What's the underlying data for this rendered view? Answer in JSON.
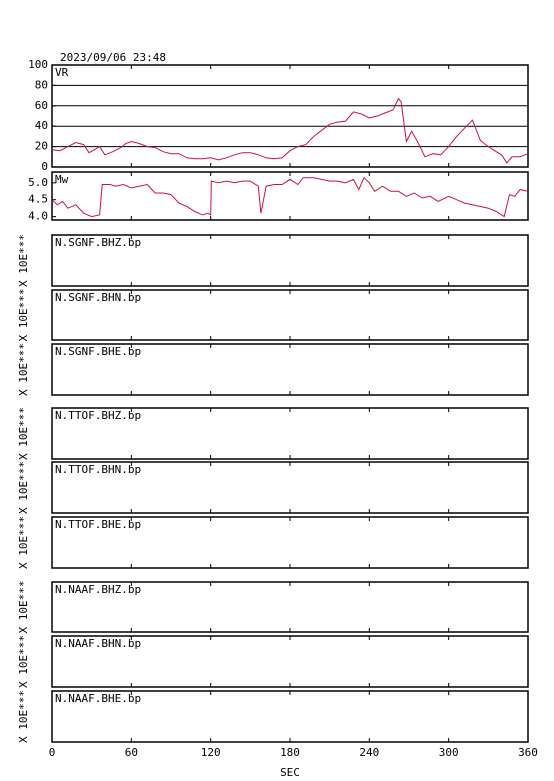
{
  "chart_data": [
    {
      "type": "line",
      "title": "2023/09/06 23:48",
      "label": "VR",
      "x": [
        0,
        6,
        12,
        18,
        24,
        28,
        32,
        36,
        40,
        46,
        52,
        56,
        60,
        66,
        72,
        78,
        84,
        90,
        96,
        102,
        108,
        114,
        120,
        126,
        132,
        138,
        144,
        150,
        156,
        162,
        168,
        174,
        180,
        186,
        192,
        198,
        204,
        210,
        216,
        222,
        228,
        234,
        240,
        246,
        252,
        258,
        262,
        264,
        268,
        272,
        276,
        282,
        288,
        294,
        300,
        306,
        312,
        318,
        324,
        330,
        336,
        340,
        344,
        348,
        354,
        360
      ],
      "series": [
        {
          "color": "#d0103c",
          "values": [
            17,
            16,
            20,
            24,
            22,
            14,
            17,
            20,
            12,
            15,
            19,
            23,
            25,
            23,
            20,
            19,
            15,
            13,
            13,
            9,
            8,
            8,
            9,
            7,
            9,
            12,
            14,
            14,
            12,
            9,
            8,
            9,
            16,
            20,
            22,
            30,
            36,
            42,
            44,
            45,
            54,
            52,
            48,
            50,
            53,
            56,
            67,
            64,
            25,
            35,
            26,
            10,
            13,
            12,
            20,
            30,
            38,
            46,
            26,
            20,
            15,
            12,
            4,
            10,
            10,
            13
          ]
        }
      ],
      "xlim": [
        0,
        360
      ],
      "ylim": [
        0,
        100
      ],
      "yticks": [
        0,
        20,
        40,
        60,
        80,
        100
      ],
      "grid": true
    },
    {
      "type": "line",
      "label": "Mw",
      "x": [
        0,
        4,
        8,
        12,
        18,
        24,
        30,
        36,
        38,
        44,
        48,
        54,
        60,
        66,
        72,
        78,
        84,
        90,
        96,
        102,
        108,
        114,
        118,
        120,
        120.5,
        126,
        132,
        138,
        144,
        150,
        156,
        158,
        162,
        168,
        174,
        180,
        186,
        190,
        198,
        204,
        210,
        216,
        222,
        228,
        232,
        236,
        240,
        244,
        250,
        256,
        262,
        268,
        274,
        280,
        286,
        292,
        300,
        306,
        312,
        318,
        324,
        330,
        336,
        342,
        346,
        350,
        354,
        360
      ],
      "series": [
        {
          "color": "#d0103c",
          "values": [
            4.5,
            4.35,
            4.45,
            4.25,
            4.35,
            4.1,
            4.0,
            4.05,
            4.95,
            4.95,
            4.9,
            4.95,
            4.85,
            4.9,
            4.95,
            4.7,
            4.7,
            4.65,
            4.4,
            4.3,
            4.15,
            4.05,
            4.1,
            4.05,
            5.05,
            5.0,
            5.05,
            5.0,
            5.05,
            5.05,
            4.9,
            4.1,
            4.9,
            4.95,
            4.95,
            5.1,
            4.95,
            5.15,
            5.15,
            5.1,
            5.05,
            5.05,
            5.0,
            5.1,
            4.8,
            5.15,
            5.0,
            4.75,
            4.9,
            4.75,
            4.75,
            4.6,
            4.7,
            4.55,
            4.6,
            4.45,
            4.6,
            4.5,
            4.4,
            4.35,
            4.3,
            4.25,
            4.15,
            4.0,
            4.65,
            4.6,
            4.8,
            4.75
          ]
        }
      ],
      "xlim": [
        0,
        360
      ],
      "ylim": [
        3.9,
        5.32
      ],
      "yticks": [
        {
          "value": 4,
          "label": "4.0"
        },
        4.5,
        {
          "value": 5,
          "label": "5.0"
        }
      ],
      "grid": false
    },
    {
      "type": "panel",
      "label": "N.SGNF.BHZ.bp",
      "ylabel": "X 10E***",
      "xlim": [
        0,
        360
      ]
    },
    {
      "type": "panel",
      "label": "N.SGNF.BHN.bp",
      "ylabel": "X 10E***",
      "xlim": [
        0,
        360
      ]
    },
    {
      "type": "panel",
      "label": "N.SGNF.BHE.bp",
      "ylabel": "X 10E***",
      "xlim": [
        0,
        360
      ]
    },
    {
      "type": "panel",
      "label": "N.TTOF.BHZ.bp",
      "ylabel": "X 10E***",
      "xlim": [
        0,
        360
      ]
    },
    {
      "type": "panel",
      "label": "N.TTOF.BHN.bp",
      "ylabel": "X 10E***",
      "xlim": [
        0,
        360
      ]
    },
    {
      "type": "panel",
      "label": "N.TTOF.BHE.bp",
      "ylabel": "X 10E***",
      "xlim": [
        0,
        360
      ]
    },
    {
      "type": "panel",
      "label": "N.NAAF.BHZ.bp",
      "ylabel": "X 10E***",
      "xlim": [
        0,
        360
      ]
    },
    {
      "type": "panel",
      "label": "N.NAAF.BHN.bp",
      "ylabel": "X 10E***",
      "xlim": [
        0,
        360
      ]
    },
    {
      "type": "panel",
      "label": "N.NAAF.BHE.bp",
      "ylabel": "X 10E***",
      "xlim": [
        0,
        360
      ],
      "xticks": [
        0,
        60,
        120,
        180,
        240,
        300,
        360
      ],
      "xlabel": "SEC"
    }
  ]
}
